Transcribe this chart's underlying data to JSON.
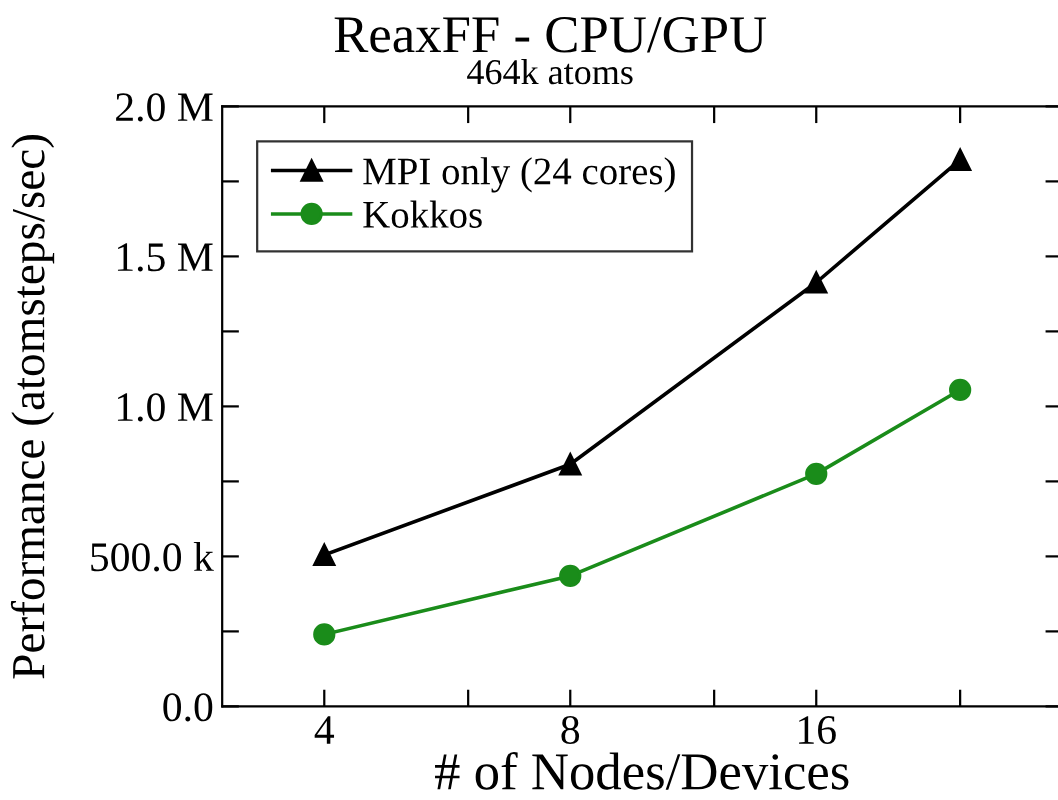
{
  "chart_data": {
    "type": "line",
    "title": "ReaxFF - CPU/GPU",
    "subtitle": "464k atoms",
    "xlabel": "# of Nodes/Devices",
    "ylabel": "Performance (atomsteps/sec)",
    "x": [
      4,
      8,
      16,
      24
    ],
    "log": "x",
    "xlim": [
      3,
      32
    ],
    "xticks": [
      4,
      {
        "value": 6,
        "label": null
      },
      8,
      {
        "value": 12,
        "label": null
      },
      16,
      {
        "value": 24,
        "label": null
      }
    ],
    "ylim": [
      0,
      2000000
    ],
    "yticks": [
      {
        "value": 0,
        "label": "0.0"
      },
      {
        "value": 250000,
        "label": null
      },
      {
        "value": 500000,
        "label": "500.0 k"
      },
      {
        "value": 750000,
        "label": null
      },
      {
        "value": 1000000,
        "label": "1.0 M"
      },
      {
        "value": 1250000,
        "label": null
      },
      {
        "value": 1500000,
        "label": "1.5 M"
      },
      {
        "value": 1750000,
        "label": null
      },
      {
        "value": 2000000,
        "label": "2.0 M"
      }
    ],
    "grid": false,
    "legend": "top left",
    "line_style": "solid",
    "series": [
      {
        "name": "MPI only (24 cores)",
        "color": "#000000",
        "marker": "triangle",
        "values": [
          505000,
          807000,
          1413000,
          1822000
        ]
      },
      {
        "name": "Kokkos",
        "color": "#1a8c1a",
        "marker": "circle",
        "values": [
          240000,
          435000,
          775000,
          1055000
        ]
      }
    ]
  }
}
